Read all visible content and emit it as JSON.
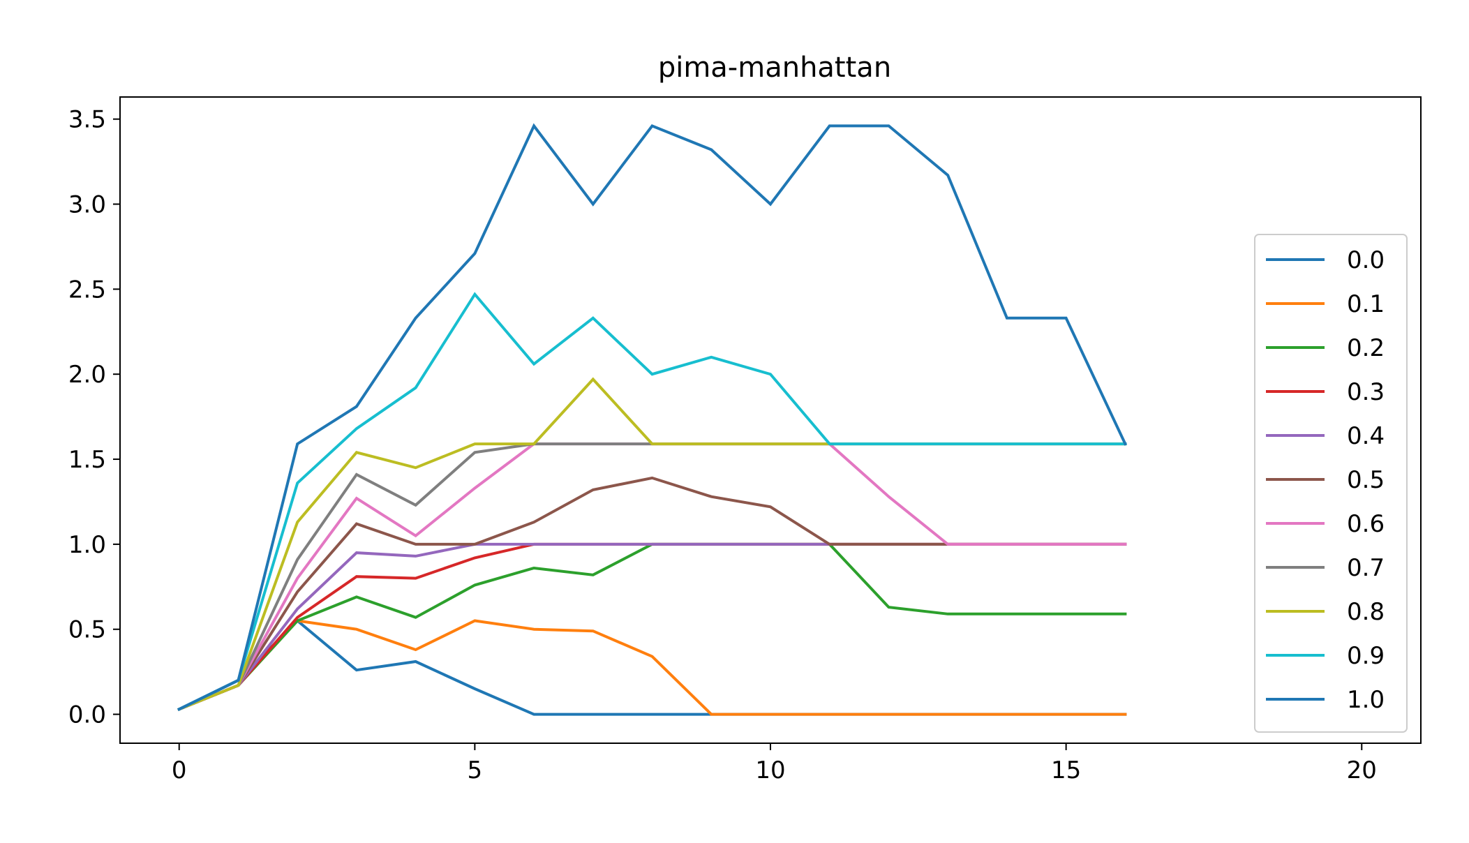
{
  "chart_data": {
    "type": "line",
    "title": "pima-manhattan",
    "xlabel": "",
    "ylabel": "",
    "xlim": [
      -1,
      21
    ],
    "ylim": [
      -0.17,
      3.63
    ],
    "xticks": [
      0,
      5,
      10,
      15,
      20
    ],
    "yticks": [
      0.0,
      0.5,
      1.0,
      1.5,
      2.0,
      2.5,
      3.0,
      3.5
    ],
    "xtick_labels": [
      "0",
      "5",
      "10",
      "15",
      "20"
    ],
    "ytick_labels": [
      "0.0",
      "0.5",
      "1.0",
      "1.5",
      "2.0",
      "2.5",
      "3.0",
      "3.5"
    ],
    "grid": false,
    "legend_position": "center-right",
    "x": [
      0,
      1,
      2,
      3,
      4,
      5,
      6,
      7,
      8,
      9,
      10,
      11,
      12,
      13,
      14,
      15,
      16
    ],
    "series": [
      {
        "name": "0.0",
        "color": "#1f77b4",
        "values": [
          0.03,
          0.2,
          0.55,
          0.26,
          0.31,
          0.15,
          0.0,
          0.0,
          0.0,
          0.0,
          0.0,
          0.0,
          0.0,
          0.0,
          0.0,
          0.0,
          0.0
        ]
      },
      {
        "name": "0.1",
        "color": "#ff7f0e",
        "values": [
          0.03,
          0.17,
          0.55,
          0.5,
          0.38,
          0.55,
          0.5,
          0.49,
          0.34,
          0.0,
          0.0,
          0.0,
          0.0,
          0.0,
          0.0,
          0.0,
          0.0
        ]
      },
      {
        "name": "0.2",
        "color": "#2ca02c",
        "values": [
          0.03,
          0.17,
          0.55,
          0.69,
          0.57,
          0.76,
          0.86,
          0.82,
          1.0,
          1.0,
          1.0,
          1.0,
          0.63,
          0.59,
          0.59,
          0.59,
          0.59
        ]
      },
      {
        "name": "0.3",
        "color": "#d62728",
        "values": [
          0.03,
          0.17,
          0.57,
          0.81,
          0.8,
          0.92,
          1.0,
          1.0,
          1.0,
          1.0,
          1.0,
          1.0,
          1.0,
          1.0,
          1.0,
          1.0,
          1.0
        ]
      },
      {
        "name": "0.4",
        "color": "#9467bd",
        "values": [
          0.03,
          0.17,
          0.62,
          0.95,
          0.93,
          1.0,
          1.0,
          1.0,
          1.0,
          1.0,
          1.0,
          1.0,
          1.0,
          1.0,
          1.0,
          1.0,
          1.0
        ]
      },
      {
        "name": "0.5",
        "color": "#8c564b",
        "values": [
          0.03,
          0.17,
          0.72,
          1.12,
          1.0,
          1.0,
          1.13,
          1.32,
          1.39,
          1.28,
          1.22,
          1.0,
          1.0,
          1.0,
          1.0,
          1.0,
          1.0
        ]
      },
      {
        "name": "0.6",
        "color": "#e377c2",
        "values": [
          0.03,
          0.17,
          0.8,
          1.27,
          1.05,
          1.33,
          1.59,
          1.59,
          1.59,
          1.59,
          1.59,
          1.59,
          1.28,
          1.0,
          1.0,
          1.0,
          1.0
        ]
      },
      {
        "name": "0.7",
        "color": "#7f7f7f",
        "values": [
          0.03,
          0.17,
          0.91,
          1.41,
          1.23,
          1.54,
          1.59,
          1.59,
          1.59,
          1.59,
          1.59,
          1.59,
          1.59,
          1.59,
          1.59,
          1.59,
          1.59
        ]
      },
      {
        "name": "0.8",
        "color": "#bcbd22",
        "values": [
          0.03,
          0.17,
          1.13,
          1.54,
          1.45,
          1.59,
          1.59,
          1.97,
          1.59,
          1.59,
          1.59,
          1.59,
          1.59,
          1.59,
          1.59,
          1.59,
          1.59
        ]
      },
      {
        "name": "0.9",
        "color": "#17becf",
        "values": [
          0.03,
          0.2,
          1.36,
          1.68,
          1.92,
          2.47,
          2.06,
          2.33,
          2.0,
          2.1,
          2.0,
          1.59,
          1.59,
          1.59,
          1.59,
          1.59,
          1.59
        ]
      },
      {
        "name": "1.0",
        "color": "#1f77b4",
        "values": [
          0.03,
          0.2,
          1.59,
          1.81,
          2.33,
          2.71,
          3.46,
          3.0,
          3.46,
          3.32,
          3.0,
          3.46,
          3.46,
          3.17,
          2.33,
          2.33,
          1.59
        ]
      }
    ]
  }
}
